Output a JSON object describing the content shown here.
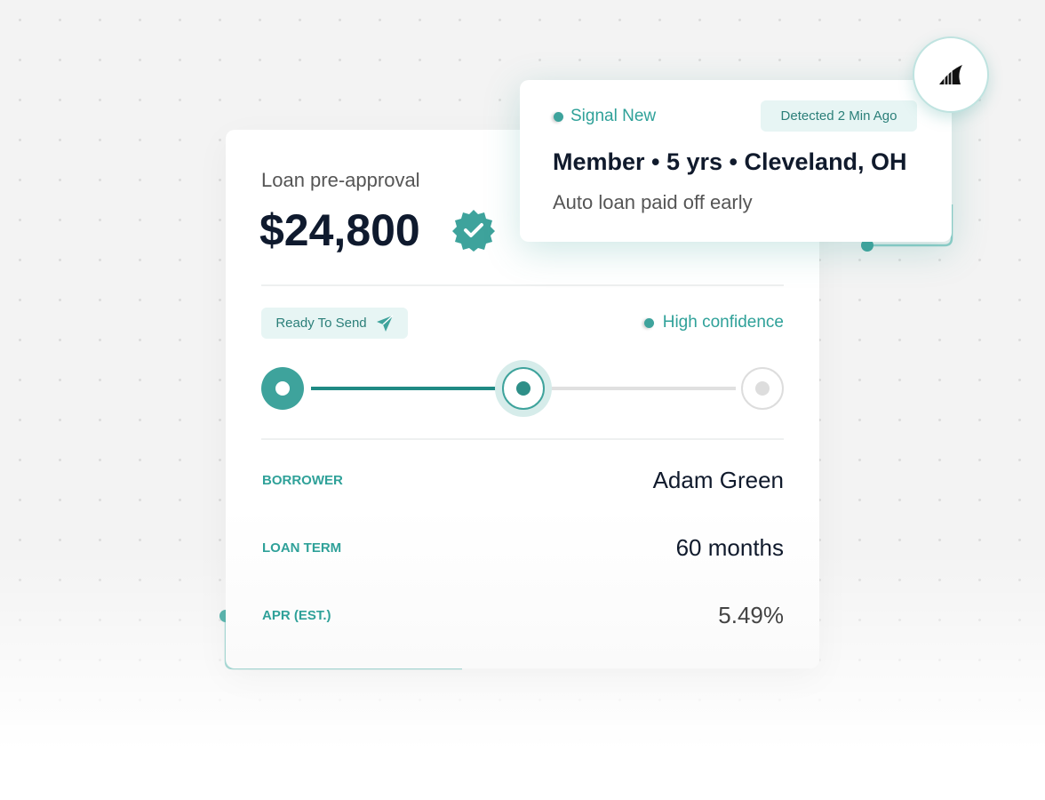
{
  "loan_card": {
    "label": "Loan pre-approval",
    "amount": "$24,800",
    "status": "Ready To Send",
    "confidence": "High confidence",
    "details": [
      {
        "label": "BORROWER",
        "value": "Adam Green"
      },
      {
        "label": "LOAN TERM",
        "value": "60 months"
      },
      {
        "label": "APR (EST.)",
        "value": "5.49%"
      }
    ]
  },
  "signal_card": {
    "tag": "Signal New",
    "time": "Detected 2 Min Ago",
    "headline": "Member • 5 yrs • Cleveland, OH",
    "detail": "Auto loan paid off early"
  }
}
